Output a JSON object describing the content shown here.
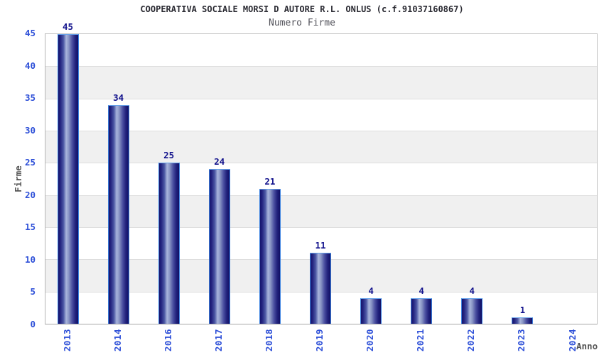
{
  "chart_data": {
    "type": "bar",
    "title": "COOPERATIVA SOCIALE MORSI D AUTORE R.L. ONLUS (c.f.91037160867)",
    "subtitle": "Numero Firme",
    "xlabel": "Anno",
    "ylabel": "Firme",
    "categories": [
      "2013",
      "2014",
      "2016",
      "2017",
      "2018",
      "2019",
      "2020",
      "2021",
      "2022",
      "2023",
      "2024"
    ],
    "values": [
      45,
      34,
      25,
      24,
      21,
      11,
      4,
      4,
      4,
      1,
      null
    ],
    "ylim": [
      0,
      45
    ],
    "ytick_step": 5,
    "grid": "horizontal-bands-alternating",
    "legend": "none",
    "colors": {
      "tick_label": "#2e50d8",
      "value_label": "#12128c",
      "axis_title": "#555555",
      "title": "#2b2b33",
      "subtitle": "#54545c",
      "band_gray": "#f0f0f0",
      "band_white": "#ffffff",
      "bar_dark": "#15156e",
      "bar_light": "#a8b4dc",
      "bar_outline": "#3b82e0"
    }
  }
}
